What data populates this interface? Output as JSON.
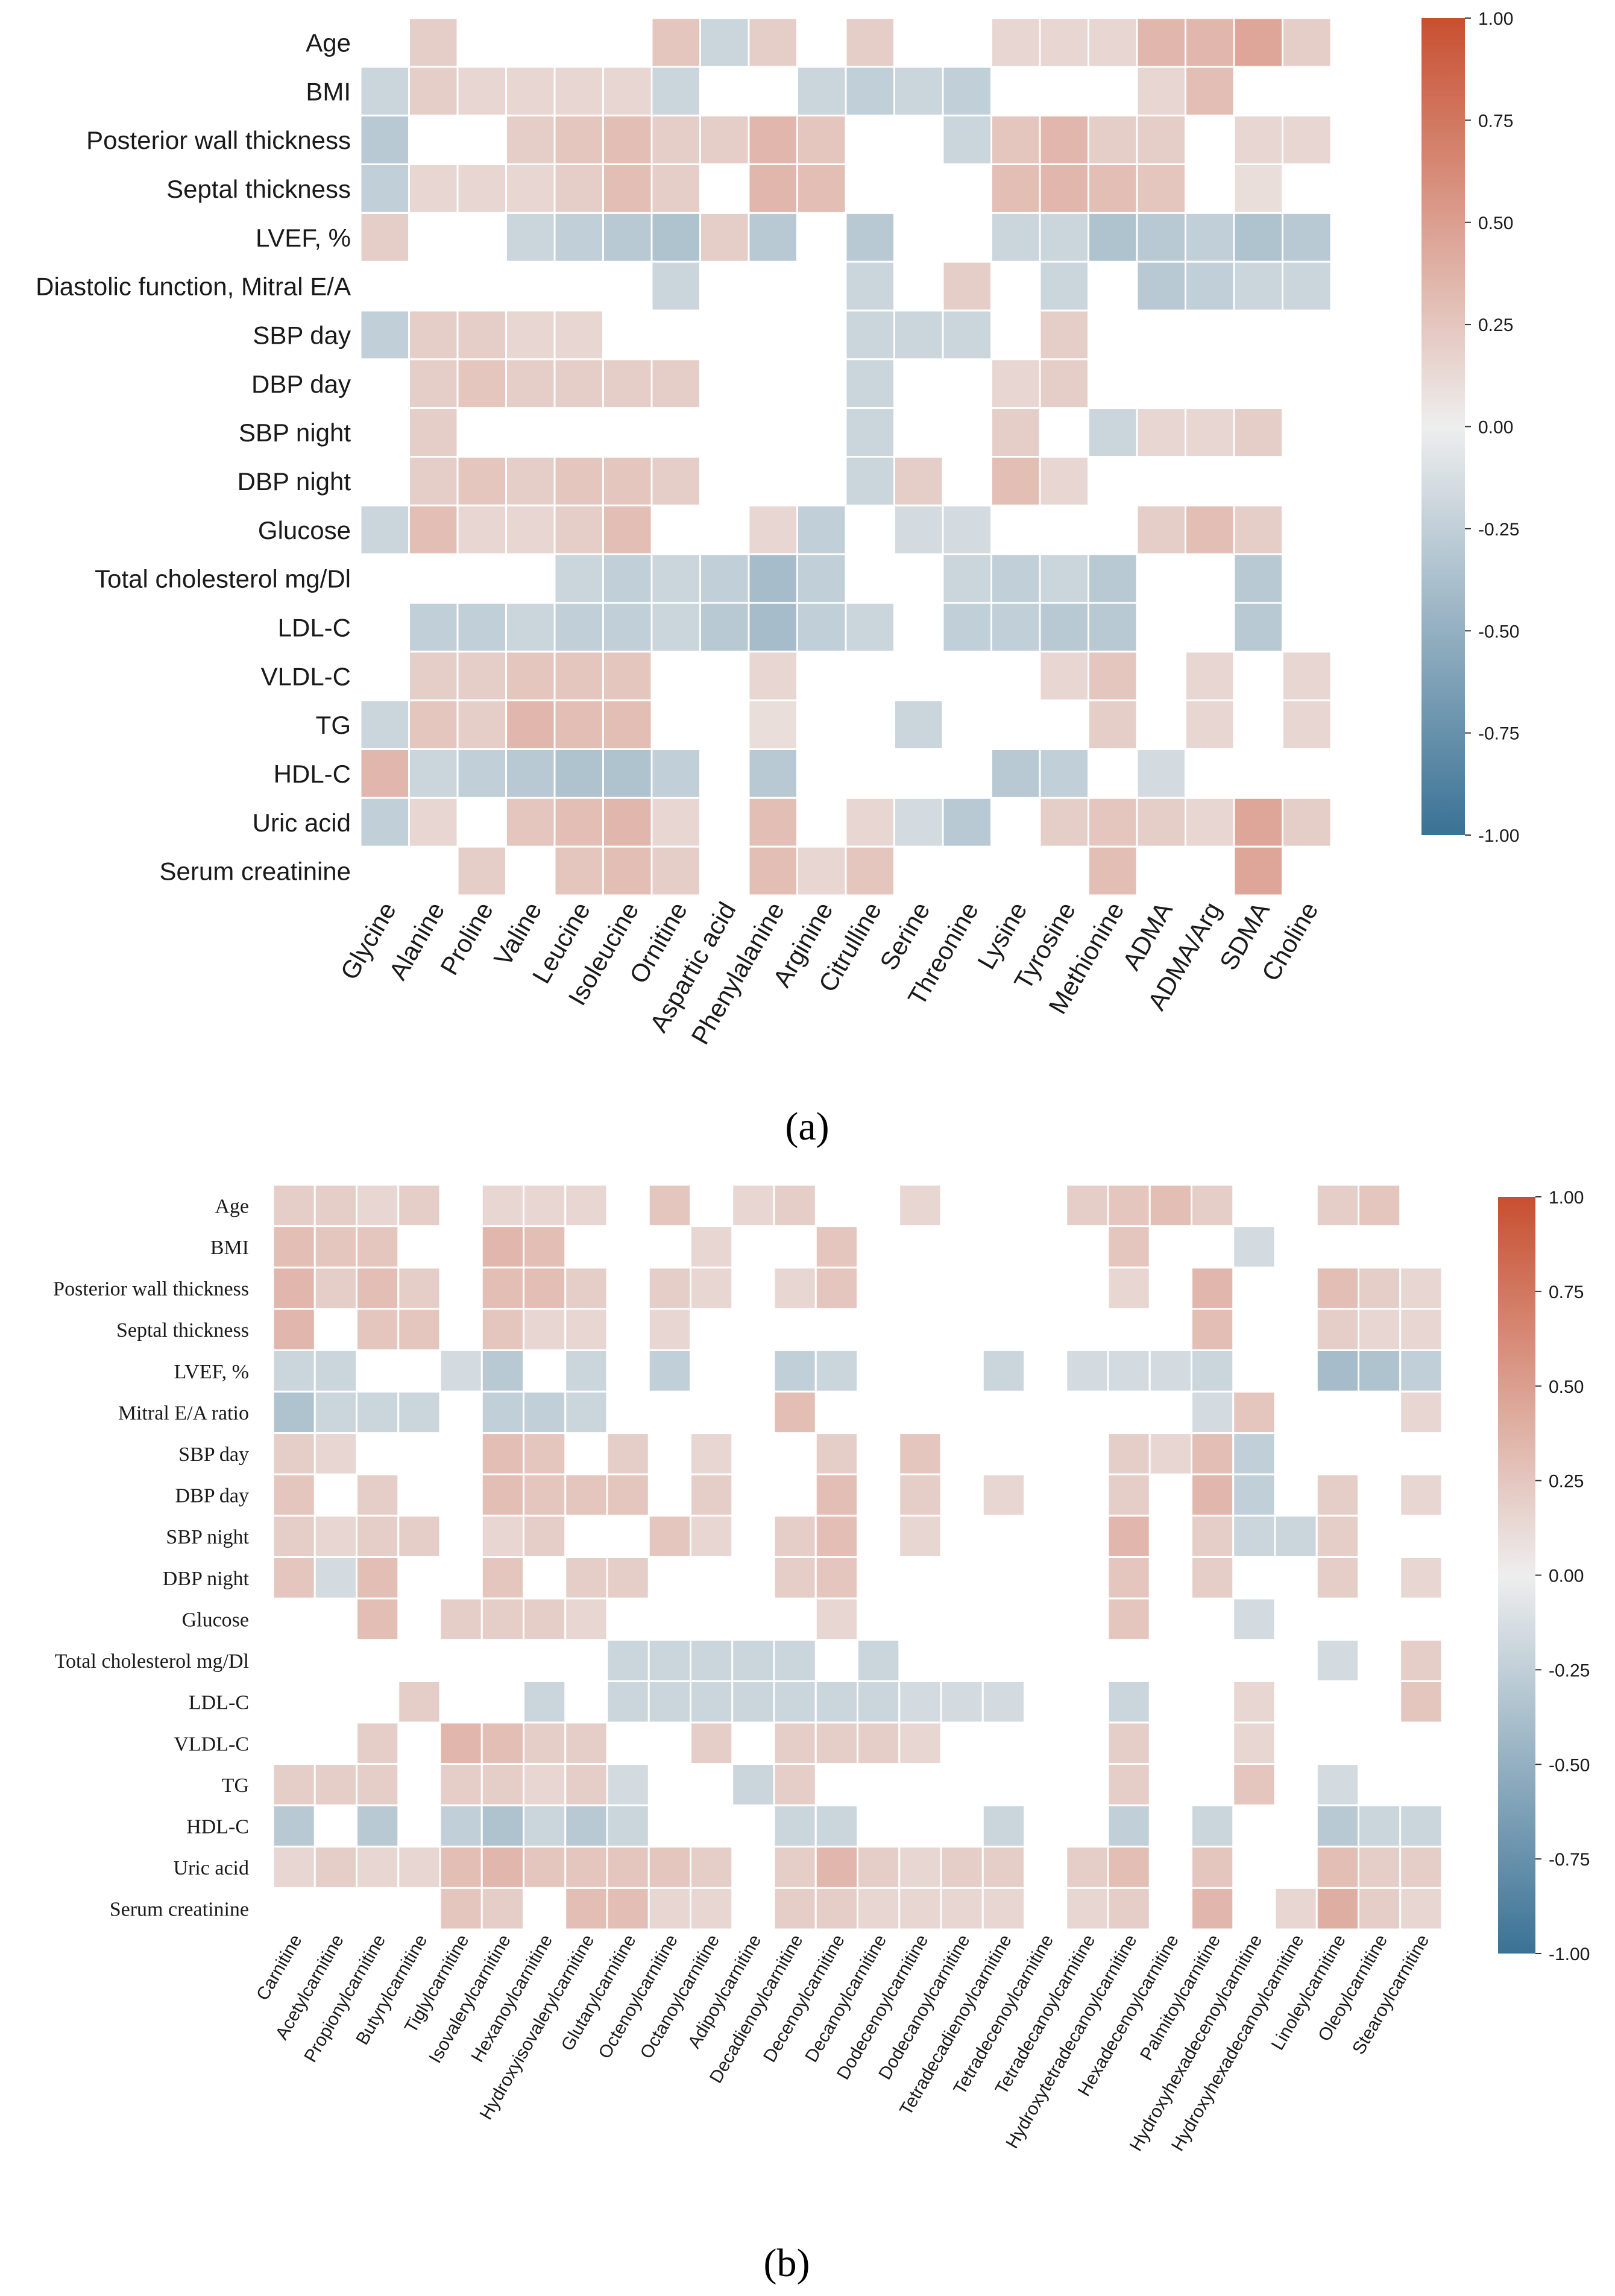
{
  "colors": {
    "negative": "#3a7295",
    "neutral": "#eeeeee",
    "positive": "#c84f30"
  },
  "colorbar_ticks": [
    "1.00",
    "0.75",
    "0.50",
    "0.25",
    "0.00",
    "-0.25",
    "-0.50",
    "-0.75",
    "-1.00"
  ],
  "chart_data": [
    {
      "type": "heatmap",
      "panel_label": "(a)",
      "rows": [
        "Age",
        "BMI",
        "Posterior wall thickness",
        "Septal thickness",
        "LVEF, %",
        "Diastolic function, Mitral E/A",
        "SBP day",
        "DBP day",
        "SBP night",
        "DBP night",
        "Glucose",
        "Total cholesterol mg/Dl",
        "LDL-C",
        "VLDL-C",
        "TG",
        "HDL-C",
        "Uric acid",
        "Serum creatinine"
      ],
      "columns": [
        "Glycine",
        "Alanine",
        "Proline",
        "Valine",
        "Leucine",
        "Isoleucine",
        "Ornitine",
        "Aspartic acid",
        "Phenylalanine",
        "Arginine",
        "Citrulline",
        "Serine",
        "Threonine",
        "Lysine",
        "Tyrosine",
        "Methionine",
        "ADMA",
        "ADMA/Arg",
        "SDMA",
        "Choline"
      ],
      "values": [
        [
          0,
          0.2,
          0,
          0,
          0,
          0,
          0.25,
          -0.2,
          0.2,
          0,
          0.2,
          0,
          0,
          0.15,
          0.15,
          0.15,
          0.35,
          0.35,
          0.45,
          0.2
        ],
        [
          -0.2,
          0.2,
          0.15,
          0.15,
          0.15,
          0.15,
          -0.2,
          0,
          0,
          -0.2,
          -0.25,
          -0.2,
          -0.25,
          0,
          0,
          0,
          0.15,
          0.3,
          0,
          0
        ],
        [
          -0.3,
          0,
          0,
          0.2,
          0.25,
          0.3,
          0.2,
          0.2,
          0.35,
          0.25,
          0,
          0,
          -0.2,
          0.25,
          0.35,
          0.2,
          0.2,
          0,
          0.15,
          0.15
        ],
        [
          -0.25,
          0.15,
          0.15,
          0.15,
          0.2,
          0.3,
          0.2,
          0,
          0.35,
          0.3,
          0,
          0,
          0,
          0.3,
          0.35,
          0.3,
          0.25,
          0,
          0.1,
          0
        ],
        [
          0.2,
          0,
          0,
          -0.2,
          -0.25,
          -0.3,
          -0.35,
          0.2,
          -0.3,
          0,
          -0.3,
          0,
          0,
          -0.2,
          -0.2,
          -0.35,
          -0.3,
          -0.25,
          -0.35,
          -0.3
        ],
        [
          0,
          0,
          0,
          0,
          0,
          0,
          -0.2,
          0,
          0,
          0,
          -0.2,
          0,
          0.2,
          0,
          -0.2,
          0,
          -0.3,
          -0.25,
          -0.2,
          -0.2
        ],
        [
          -0.25,
          0.2,
          0.2,
          0.15,
          0.15,
          0,
          0,
          0,
          0,
          0,
          -0.2,
          -0.2,
          -0.2,
          0,
          0.2,
          0,
          0,
          0,
          0,
          0
        ],
        [
          0,
          0.2,
          0.25,
          0.2,
          0.2,
          0.2,
          0.2,
          0,
          0,
          0,
          -0.2,
          0,
          0,
          0.15,
          0.2,
          0,
          0,
          0,
          0,
          0
        ],
        [
          0,
          0.2,
          0,
          0,
          0,
          0,
          0,
          0,
          0,
          0,
          -0.2,
          0,
          0,
          0.2,
          0,
          -0.2,
          0.15,
          0.15,
          0.2,
          0
        ],
        [
          0,
          0.2,
          0.25,
          0.2,
          0.25,
          0.25,
          0.2,
          0,
          0,
          0,
          -0.2,
          0.2,
          0,
          0.3,
          0.15,
          0,
          0,
          0,
          0,
          0
        ],
        [
          -0.2,
          0.3,
          0.15,
          0.15,
          0.2,
          0.3,
          0,
          0,
          0.15,
          -0.25,
          0,
          -0.15,
          -0.15,
          0,
          0,
          0,
          0.2,
          0.3,
          0.2,
          0
        ],
        [
          0,
          0,
          0,
          0,
          -0.2,
          -0.25,
          -0.2,
          -0.25,
          -0.4,
          -0.25,
          0,
          0,
          -0.2,
          -0.25,
          -0.2,
          -0.3,
          0,
          0,
          -0.3,
          0
        ],
        [
          0,
          -0.25,
          -0.25,
          -0.2,
          -0.25,
          -0.25,
          -0.2,
          -0.3,
          -0.4,
          -0.25,
          -0.2,
          0,
          -0.25,
          -0.25,
          -0.3,
          -0.3,
          0,
          0,
          -0.3,
          0
        ],
        [
          0,
          0.2,
          0.2,
          0.25,
          0.25,
          0.25,
          0,
          0,
          0.15,
          0,
          0,
          0,
          0,
          0,
          0.15,
          0.25,
          0,
          0.15,
          0,
          0.15
        ],
        [
          -0.2,
          0.25,
          0.2,
          0.35,
          0.3,
          0.3,
          0,
          0,
          0.1,
          0,
          0,
          -0.2,
          0,
          0,
          0,
          0.2,
          0,
          0.15,
          0,
          0.15
        ],
        [
          0.35,
          -0.2,
          -0.25,
          -0.3,
          -0.35,
          -0.35,
          -0.25,
          0,
          -0.3,
          0,
          0,
          0,
          0,
          -0.3,
          -0.25,
          0,
          -0.15,
          0,
          0,
          0
        ],
        [
          -0.25,
          0.15,
          0,
          0.25,
          0.3,
          0.35,
          0.15,
          0,
          0.3,
          0,
          0.15,
          -0.15,
          -0.3,
          0,
          0.2,
          0.25,
          0.2,
          0.15,
          0.45,
          0.2
        ],
        [
          0,
          0,
          0.2,
          0,
          0.25,
          0.3,
          0.2,
          0,
          0.3,
          0.15,
          0.25,
          0,
          0,
          0,
          0,
          0.3,
          0,
          0,
          0.45,
          0
        ]
      ],
      "vlim": [
        -1,
        1
      ]
    },
    {
      "type": "heatmap",
      "panel_label": "(b)",
      "rows": [
        "Age",
        "BMI",
        "Posterior wall thickness",
        "Septal thickness",
        "LVEF, %",
        "Mitral E/A ratio",
        "SBP day",
        "DBP day",
        "SBP night",
        "DBP night",
        "Glucose",
        "Total cholesterol mg/Dl",
        "LDL-C",
        "VLDL-C",
        "TG",
        "HDL-C",
        "Uric acid",
        "Serum creatinine"
      ],
      "columns": [
        "Carnitine",
        "Acetylcarnitine",
        "Propionylcarnitine",
        "Butyrylcarnitine",
        "Tiglylcarnitine",
        "Isovalerylcarnitine",
        "Hexanoylcarnitine",
        "Hydroxyisovalerylcarnitine",
        "Glutarylcarnitine",
        "Octenoylcarnitine",
        "Octanoylcarnitine",
        "Adipoylcarnitine",
        "Decadienoylcarnitine",
        "Decenoylcarnitine",
        "Decanoylcarnitine",
        "Dodecenoylcarnitine",
        "Dodecanoylcarnitine",
        "Tetradecadienoylcarnitine",
        "Tetradecenoylcarnitine",
        "Tetradecanoylcarnitine",
        "Hydroxytetradecanoylcarnitine",
        "Hexadecenoylcarnitine",
        "Palmitoylcarnitine",
        "Hydroxyhexadecenoylcarnitine",
        "Hydroxyhexadecanoylcarnitine",
        "Linoleylcarnitine",
        "Oleoylcarnitine",
        "Stearoylcarnitine"
      ],
      "values": [
        [
          0.2,
          0.2,
          0.15,
          0.2,
          0,
          0.15,
          0.15,
          0.15,
          0,
          0.25,
          0,
          0.15,
          0.2,
          0,
          0,
          0.15,
          0,
          0,
          0,
          0.2,
          0.25,
          0.3,
          0.2,
          0,
          0,
          0.2,
          0.25,
          0
        ],
        [
          0.3,
          0.25,
          0.25,
          0,
          0,
          0.35,
          0.3,
          0,
          0,
          0,
          0.15,
          0,
          0,
          0.25,
          0,
          0,
          0,
          0,
          0,
          0,
          0.25,
          0,
          0,
          -0.15,
          0,
          0,
          0,
          0
        ],
        [
          0.35,
          0.2,
          0.3,
          0.2,
          0,
          0.3,
          0.3,
          0.2,
          0,
          0.2,
          0.15,
          0,
          0.15,
          0.25,
          0,
          0,
          0,
          0,
          0,
          0,
          0.15,
          0,
          0.35,
          0,
          0,
          0.3,
          0.2,
          0.15
        ],
        [
          0.35,
          0,
          0.25,
          0.25,
          0,
          0.25,
          0.15,
          0.15,
          0,
          0.15,
          0,
          0,
          0,
          0,
          0,
          0,
          0,
          0,
          0,
          0,
          0,
          0,
          0.3,
          0,
          0,
          0.2,
          0.15,
          0.15
        ],
        [
          -0.2,
          -0.2,
          0,
          0,
          -0.15,
          -0.3,
          0,
          -0.2,
          0,
          -0.25,
          0,
          0,
          -0.25,
          -0.2,
          0,
          0,
          0,
          -0.2,
          0,
          -0.15,
          -0.15,
          -0.15,
          -0.2,
          0,
          0,
          -0.4,
          -0.35,
          -0.25
        ],
        [
          -0.35,
          -0.2,
          -0.2,
          -0.2,
          0,
          -0.25,
          -0.25,
          -0.2,
          0,
          0,
          0,
          0,
          0.3,
          0,
          0,
          0,
          0,
          0,
          0,
          0,
          0,
          0,
          -0.15,
          0.25,
          0,
          0,
          0,
          0.15
        ],
        [
          0.2,
          0.15,
          0,
          0,
          0,
          0.3,
          0.25,
          0,
          0.2,
          0,
          0.15,
          0,
          0,
          0.2,
          0,
          0.25,
          0,
          0,
          0,
          0,
          0.2,
          0.15,
          0.3,
          -0.25,
          0,
          0,
          0,
          0
        ],
        [
          0.25,
          0,
          0.2,
          0,
          0,
          0.3,
          0.25,
          0.25,
          0.25,
          0,
          0.2,
          0,
          0,
          0.3,
          0,
          0.2,
          0,
          0.15,
          0,
          0,
          0.2,
          0,
          0.35,
          -0.25,
          0,
          0.2,
          0,
          0.15
        ],
        [
          0.2,
          0.15,
          0.2,
          0.2,
          0,
          0.15,
          0.2,
          0,
          0,
          0.25,
          0.15,
          0,
          0.2,
          0.3,
          0,
          0.15,
          0,
          0,
          0,
          0,
          0.35,
          0,
          0.2,
          -0.2,
          -0.2,
          0.2,
          0,
          0
        ],
        [
          0.25,
          -0.15,
          0.3,
          0,
          0,
          0.25,
          0,
          0.2,
          0.2,
          0,
          0,
          0,
          0.2,
          0.25,
          0,
          0,
          0,
          0,
          0,
          0,
          0.25,
          0,
          0.2,
          0,
          0,
          0.2,
          0,
          0.15
        ],
        [
          0,
          0,
          0.3,
          0,
          0.2,
          0.2,
          0.2,
          0.15,
          0,
          0,
          0,
          0,
          0,
          0.15,
          0,
          0,
          0,
          0,
          0,
          0,
          0.25,
          0,
          0,
          -0.15,
          0,
          0,
          0,
          0
        ],
        [
          0,
          0,
          0,
          0,
          0,
          0,
          0,
          0,
          -0.2,
          -0.2,
          -0.2,
          -0.2,
          -0.2,
          0,
          -0.2,
          0,
          0,
          0,
          0,
          0,
          0,
          0,
          0,
          0,
          0,
          -0.15,
          0,
          0.2
        ],
        [
          0,
          0,
          0,
          0.2,
          0,
          0,
          -0.2,
          0,
          -0.2,
          -0.2,
          -0.2,
          -0.2,
          -0.2,
          -0.2,
          -0.2,
          -0.15,
          -0.15,
          -0.15,
          0,
          0,
          -0.2,
          0,
          0,
          0.15,
          0,
          0,
          0,
          0.25
        ],
        [
          0,
          0,
          0.2,
          0,
          0.35,
          0.3,
          0.2,
          0.2,
          0,
          0,
          0.2,
          0,
          0.2,
          0.2,
          0.2,
          0.15,
          0,
          0,
          0,
          0,
          0.2,
          0,
          0,
          0.15,
          0,
          0,
          0,
          0
        ],
        [
          0.2,
          0.2,
          0.2,
          0,
          0.2,
          0.2,
          0.15,
          0.2,
          -0.15,
          0,
          0,
          -0.2,
          0.2,
          0,
          0,
          0,
          0,
          0,
          0,
          0,
          0.2,
          0,
          0,
          0.25,
          0,
          -0.15,
          0,
          0
        ],
        [
          -0.3,
          0,
          -0.3,
          0,
          -0.25,
          -0.35,
          -0.2,
          -0.3,
          -0.2,
          0,
          0,
          0,
          -0.2,
          -0.2,
          0,
          0,
          0,
          -0.2,
          0,
          0,
          -0.25,
          0,
          -0.2,
          0,
          0,
          -0.3,
          -0.2,
          -0.2
        ],
        [
          0.15,
          0.2,
          0.15,
          0.15,
          0.3,
          0.35,
          0.25,
          0.25,
          0.25,
          0.25,
          0.2,
          0,
          0.2,
          0.35,
          0.2,
          0.15,
          0.2,
          0.2,
          0,
          0.2,
          0.3,
          0,
          0.25,
          0,
          0,
          0.3,
          0.2,
          0.2
        ],
        [
          0,
          0,
          0,
          0,
          0.25,
          0.2,
          0,
          0.3,
          0.3,
          0.15,
          0.15,
          0,
          0.2,
          0.2,
          0.15,
          0.15,
          0.15,
          0.15,
          0,
          0.15,
          0.2,
          0,
          0.35,
          0,
          0.15,
          0.4,
          0.2,
          0.15
        ]
      ],
      "vlim": [
        -1,
        1
      ]
    }
  ]
}
